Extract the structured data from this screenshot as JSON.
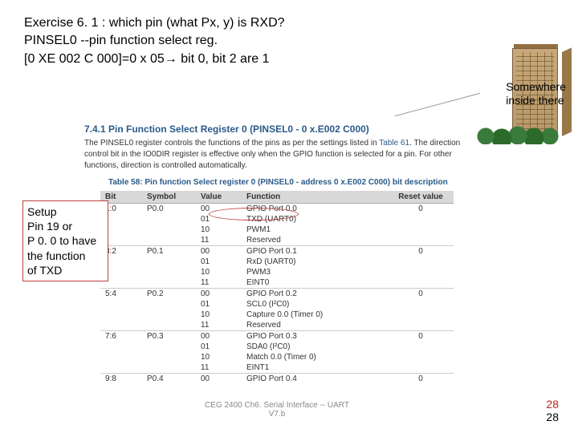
{
  "exercise": {
    "line1": "Exercise 6. 1 : which pin (what Px, y) is RXD?",
    "line2": "PINSEL0 --pin function select reg.",
    "line3": "[0 XE 002 C 000]=0 x 05→ bit 0, bit 2 are 1"
  },
  "somewhere": {
    "line1": "Somewhere",
    "line2": "inside there"
  },
  "section": {
    "header": "7.4.1  Pin Function Select Register 0 (PINSEL0 - 0 x.E002 C000)",
    "desc1": "The PINSEL0 register controls the functions of the pins as per the settings listed in",
    "desc2_link": "Table 61",
    "desc2_rest": ". The direction control bit in the IO0DIR register is effective only when the GPIO function is selected for a pin. For other functions, direction is controlled automatically.",
    "table_caption": "Table 58:  Pin function Select register 0 (PINSEL0 - address 0 x.E002 C000) bit description"
  },
  "table": {
    "headers": {
      "bit": "Bit",
      "symbol": "Symbol",
      "value": "Value",
      "function": "Function",
      "reset": "Reset value"
    },
    "rows": [
      {
        "bit": "1:0",
        "symbol": "P0.0",
        "value": "00",
        "function": "GPIO Port 0.0",
        "reset": "0"
      },
      {
        "bit": "",
        "symbol": "",
        "value": "01",
        "function": "TXD (UART0)",
        "reset": ""
      },
      {
        "bit": "",
        "symbol": "",
        "value": "10",
        "function": "PWM1",
        "reset": ""
      },
      {
        "bit": "",
        "symbol": "",
        "value": "11",
        "function": "Reserved",
        "reset": ""
      },
      {
        "bit": "3:2",
        "symbol": "P0.1",
        "value": "00",
        "function": "GPIO Port 0.1",
        "reset": "0"
      },
      {
        "bit": "",
        "symbol": "",
        "value": "01",
        "function": "RxD (UART0)",
        "reset": ""
      },
      {
        "bit": "",
        "symbol": "",
        "value": "10",
        "function": "PWM3",
        "reset": ""
      },
      {
        "bit": "",
        "symbol": "",
        "value": "11",
        "function": "EINT0",
        "reset": ""
      },
      {
        "bit": "5:4",
        "symbol": "P0.2",
        "value": "00",
        "function": "GPIO Port 0.2",
        "reset": "0"
      },
      {
        "bit": "",
        "symbol": "",
        "value": "01",
        "function": "SCL0 (I²C0)",
        "reset": ""
      },
      {
        "bit": "",
        "symbol": "",
        "value": "10",
        "function": "Capture 0.0 (Timer 0)",
        "reset": ""
      },
      {
        "bit": "",
        "symbol": "",
        "value": "11",
        "function": "Reserved",
        "reset": ""
      },
      {
        "bit": "7:6",
        "symbol": "P0.3",
        "value": "00",
        "function": "GPIO Port 0.3",
        "reset": "0"
      },
      {
        "bit": "",
        "symbol": "",
        "value": "01",
        "function": "SDA0 (I²C0)",
        "reset": ""
      },
      {
        "bit": "",
        "symbol": "",
        "value": "10",
        "function": "Match 0.0 (Timer 0)",
        "reset": ""
      },
      {
        "bit": "",
        "symbol": "",
        "value": "11",
        "function": "EINT1",
        "reset": ""
      },
      {
        "bit": "9:8",
        "symbol": "P0.4",
        "value": "00",
        "function": "GPIO Port 0.4",
        "reset": "0"
      }
    ]
  },
  "setup_box": {
    "line1": "Setup",
    "line2": "Pin 19 or",
    "line3": "P 0. 0 to have",
    "line4": "the function",
    "line5": "of TXD"
  },
  "footer": {
    "text": "CEG 2400 Ch6. Serial Interface -- UART",
    "sub": "V7.b",
    "page_red": "28",
    "page_black": "28"
  },
  "colors": {
    "header_blue": "#2a5a8a",
    "red_box": "#c04040",
    "page_red": "#c02020"
  }
}
